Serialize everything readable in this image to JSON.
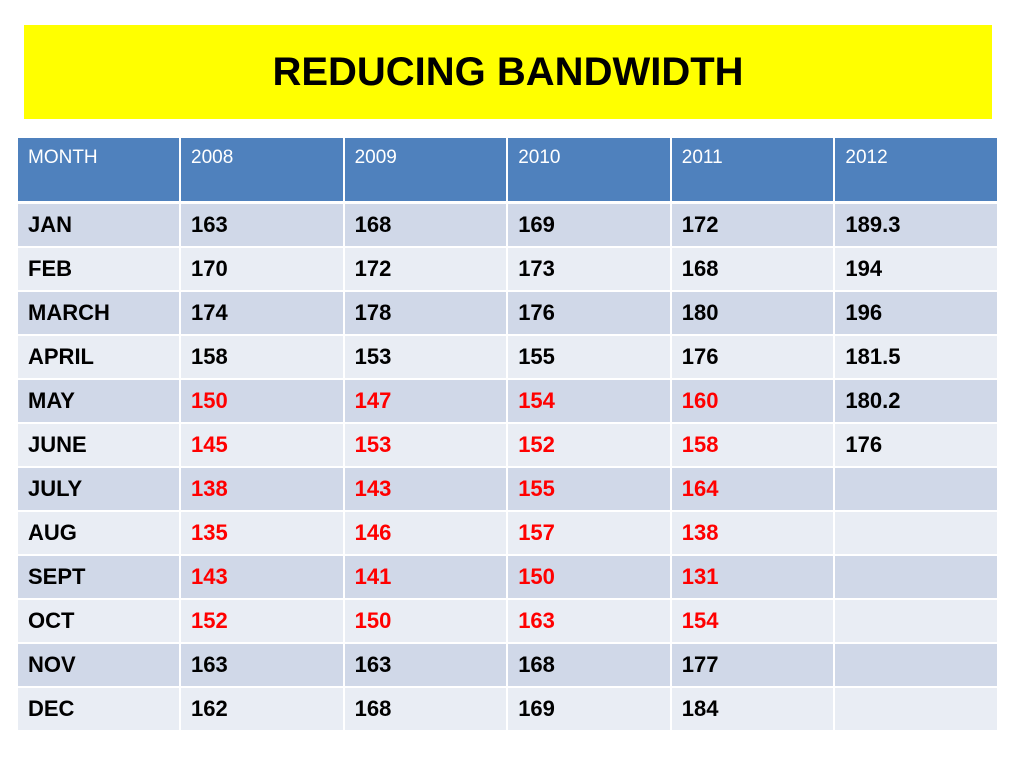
{
  "title": "REDUCING BANDWIDTH",
  "colors": {
    "banner": "#ffff00",
    "header": "#4f81bd",
    "row_odd": "#d0d8e8",
    "row_even": "#e9edf4",
    "highlight_text": "#ff0000"
  },
  "table": {
    "headers": [
      "MONTH",
      "2008",
      "2009",
      "2010",
      "2011",
      "2012"
    ],
    "rows": [
      {
        "month": "JAN",
        "cells": [
          "163",
          "168",
          "169",
          "172",
          "189.3"
        ],
        "red": [
          false,
          false,
          false,
          false,
          false
        ]
      },
      {
        "month": "FEB",
        "cells": [
          "170",
          "172",
          "173",
          "168",
          "194"
        ],
        "red": [
          false,
          false,
          false,
          false,
          false
        ]
      },
      {
        "month": "MARCH",
        "cells": [
          "174",
          "178",
          "176",
          "180",
          "196"
        ],
        "red": [
          false,
          false,
          false,
          false,
          false
        ]
      },
      {
        "month": "APRIL",
        "cells": [
          "158",
          "153",
          "155",
          "176",
          "181.5"
        ],
        "red": [
          false,
          false,
          false,
          false,
          false
        ]
      },
      {
        "month": "MAY",
        "cells": [
          "150",
          "147",
          "154",
          "160",
          "180.2"
        ],
        "red": [
          true,
          true,
          true,
          true,
          false
        ]
      },
      {
        "month": "JUNE",
        "cells": [
          "145",
          "153",
          "152",
          "158",
          "176"
        ],
        "red": [
          true,
          true,
          true,
          true,
          false
        ]
      },
      {
        "month": "JULY",
        "cells": [
          "138",
          "143",
          "155",
          "164",
          ""
        ],
        "red": [
          true,
          true,
          true,
          true,
          false
        ]
      },
      {
        "month": "AUG",
        "cells": [
          "135",
          "146",
          "157",
          "138",
          ""
        ],
        "red": [
          true,
          true,
          true,
          true,
          false
        ]
      },
      {
        "month": "SEPT",
        "cells": [
          "143",
          "141",
          "150",
          "131",
          ""
        ],
        "red": [
          true,
          true,
          true,
          true,
          false
        ]
      },
      {
        "month": "OCT",
        "cells": [
          "152",
          "150",
          "163",
          "154",
          ""
        ],
        "red": [
          true,
          true,
          true,
          true,
          false
        ]
      },
      {
        "month": "NOV",
        "cells": [
          "163",
          "163",
          "168",
          "177",
          ""
        ],
        "red": [
          false,
          false,
          false,
          false,
          false
        ]
      },
      {
        "month": "DEC",
        "cells": [
          "162",
          "168",
          "169",
          "184",
          ""
        ],
        "red": [
          false,
          false,
          false,
          false,
          false
        ]
      }
    ]
  }
}
